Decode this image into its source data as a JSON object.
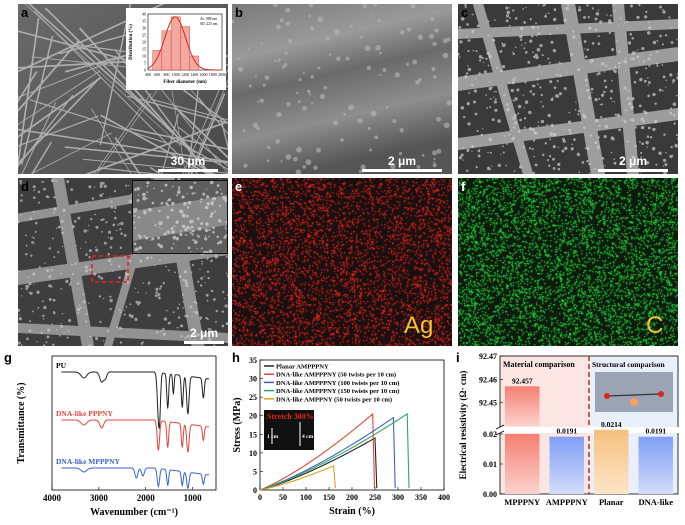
{
  "panels": {
    "a": {
      "label": "a",
      "scale": "30 μm"
    },
    "b": {
      "label": "b",
      "scale": "2 μm"
    },
    "c": {
      "label": "c",
      "scale": "2 μm"
    },
    "d": {
      "label": "d",
      "scale": "2 μm"
    },
    "e": {
      "label": "e",
      "element": "Ag"
    },
    "f": {
      "label": "f",
      "element": "C"
    },
    "g": {
      "label": "g"
    },
    "h": {
      "label": "h"
    },
    "i": {
      "label": "i"
    }
  },
  "colors": {
    "red": "#e0453a",
    "blue": "#3a63c8",
    "green": "#2fa66a",
    "teal": "#1b9aaa",
    "yellow": "#d9a21b",
    "black": "#222222",
    "ag": "#e0241b",
    "c": "#22d33a"
  },
  "chart_data": [
    {
      "type": "bar",
      "panel": "a-inset",
      "ylabel": "Distribution (%)",
      "xlabel": "Fiber diameter (nm)",
      "stats": [
        "Av: 988 nm",
        "SD: 225 nm"
      ],
      "categories": [
        600,
        800,
        1000,
        1200,
        1400
      ],
      "values": [
        14,
        28,
        38,
        31,
        10
      ],
      "xticks": [
        400,
        600,
        800,
        1000,
        1200,
        1400,
        1600,
        1800,
        2000
      ],
      "yticks": [
        0,
        5,
        10,
        15,
        20,
        25,
        30,
        35,
        40
      ],
      "xlim": [
        400,
        2000
      ],
      "ylim": [
        0,
        40
      ]
    },
    {
      "type": "line",
      "panel": "g",
      "xlabel": "Wavenumber (cm⁻¹)",
      "ylabel": "Transmittance (%)",
      "xlim": [
        4000,
        500
      ],
      "xticks": [
        4000,
        3000,
        2000,
        1000
      ],
      "series": [
        {
          "name": "PU",
          "color": "#222222",
          "offset": 2
        },
        {
          "name": "DNA-like PPPNY",
          "color": "#e0453a",
          "offset": 1
        },
        {
          "name": "DNA-like MPPPNY",
          "color": "#3a63c8",
          "offset": 0
        }
      ]
    },
    {
      "type": "line",
      "panel": "h",
      "xlabel": "Strain (%)",
      "ylabel": "Stress (MPa)",
      "xlim": [
        0,
        400
      ],
      "ylim": [
        0,
        35
      ],
      "xticks": [
        0,
        50,
        100,
        150,
        200,
        250,
        300,
        350,
        400
      ],
      "yticks": [
        0,
        5,
        10,
        15,
        20,
        25,
        30,
        35
      ],
      "annotation": "Stretch 300%",
      "photo_labels": [
        "1 cm",
        "4 cm"
      ],
      "series": [
        {
          "name": "Planar AMPPPNY",
          "color": "#222222",
          "break_strain": 250,
          "max_stress": 14
        },
        {
          "name": "DNA-like AMPPPNY (50 twists per 10 cm)",
          "color": "#e0453a",
          "break_strain": 245,
          "max_stress": 20.5
        },
        {
          "name": "DNA-like AMPPPNY (100 twists per 10 cm)",
          "color": "#3a63c8",
          "break_strain": 290,
          "max_stress": 19.5
        },
        {
          "name": "DNA-like AMPPPNY (150 twists per 10 cm)",
          "color": "#2fa66a",
          "break_strain": 320,
          "max_stress": 20.5
        },
        {
          "name": "DNA-like AMPPNY (50 twists per 10 cm)",
          "color": "#d9a21b",
          "break_strain": 160,
          "max_stress": 6.5
        }
      ]
    },
    {
      "type": "bar",
      "panel": "i",
      "ylabel": "Electrical resistivity (Ω· cm)",
      "categories": [
        "MPPPNY",
        "AMPPPNY",
        "Planar",
        "DNA-like"
      ],
      "values": [
        92.457,
        0.0191,
        0.0214,
        0.0191
      ],
      "value_labels": [
        "92.457",
        "0.0191",
        "0.0214",
        "0.0191"
      ],
      "upper_ylim": [
        92.44,
        92.47
      ],
      "upper_yticks": [
        "92.47",
        "92.46",
        "92.45"
      ],
      "lower_ylim": [
        0,
        0.02
      ],
      "lower_yticks": [
        "0.02",
        "0.01",
        "0.00"
      ],
      "group_labels": [
        "Material comparison",
        "Structural comparison"
      ]
    }
  ]
}
